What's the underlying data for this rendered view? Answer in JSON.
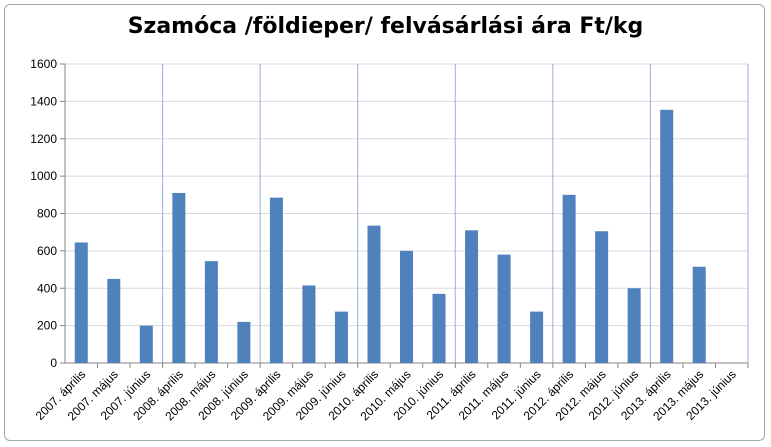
{
  "chart_data": {
    "type": "bar",
    "title": "Szamóca /földieper/ felvásárlási ára Ft/kg",
    "xlabel": "",
    "ylabel": "",
    "ylim": [
      0,
      1600
    ],
    "yticks": [
      0,
      200,
      400,
      600,
      800,
      1000,
      1200,
      1400,
      1600
    ],
    "grid": true,
    "categories": [
      "2007. április",
      "2007. május",
      "2007. június",
      "2008. április",
      "2008. május",
      "2008. június",
      "2009. április",
      "2009. május",
      "2009. június",
      "2010. április",
      "2010. május",
      "2010. június",
      "2011. április",
      "2011. május",
      "2011. június",
      "2012. április",
      "2012. május",
      "2012. június",
      "2013. április",
      "2013. május",
      "2013. június"
    ],
    "values": [
      645,
      450,
      200,
      910,
      545,
      220,
      885,
      415,
      275,
      735,
      600,
      370,
      710,
      580,
      275,
      900,
      705,
      400,
      1355,
      515,
      null
    ],
    "colors": {
      "bar": "#4f81bd",
      "grid": "#d9d9d9",
      "year_separator": "#95b3d7",
      "axis": "#868686"
    }
  }
}
